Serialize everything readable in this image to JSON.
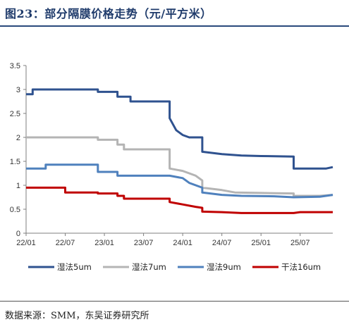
{
  "title": "图23：部分隔膜价格走势（元/平方米）",
  "source": "数据来源：SMM，东吴证券研究所",
  "chart_data": {
    "type": "line",
    "title": "部分隔膜价格走势（元/平方米）",
    "xlabel": "",
    "ylabel": "",
    "ylim": [
      0,
      3.5
    ],
    "yticks": [
      "0",
      "0.5",
      "1",
      "1.5",
      "2",
      "2.5",
      "3",
      "3.5"
    ],
    "xlim": [
      "2022-01",
      "2025-12"
    ],
    "xticks": [
      "22/01",
      "22/07",
      "23/01",
      "23/07",
      "24/01",
      "24/07",
      "25/01",
      "25/07"
    ],
    "grid": false,
    "legend_position": "bottom",
    "series": [
      {
        "name": "湿法5um",
        "color": "#2f528f",
        "points": [
          [
            "2022-01",
            2.9
          ],
          [
            "2022-02",
            2.9
          ],
          [
            "2022-02",
            3.0
          ],
          [
            "2022-12",
            3.0
          ],
          [
            "2022-12",
            2.95
          ],
          [
            "2023-03",
            2.95
          ],
          [
            "2023-03",
            2.85
          ],
          [
            "2023-05",
            2.85
          ],
          [
            "2023-05",
            2.75
          ],
          [
            "2023-11",
            2.75
          ],
          [
            "2023-11",
            2.4
          ],
          [
            "2023-12",
            2.15
          ],
          [
            "2024-01",
            2.05
          ],
          [
            "2024-02",
            2.0
          ],
          [
            "2024-04",
            2.0
          ],
          [
            "2024-04",
            1.7
          ],
          [
            "2024-07",
            1.65
          ],
          [
            "2024-10",
            1.62
          ],
          [
            "2025-01",
            1.61
          ],
          [
            "2025-06",
            1.6
          ],
          [
            "2025-06",
            1.35
          ],
          [
            "2025-11",
            1.35
          ],
          [
            "2025-12",
            1.38
          ]
        ]
      },
      {
        "name": "湿法7um",
        "color": "#b4b4b4",
        "points": [
          [
            "2022-01",
            2.0
          ],
          [
            "2022-12",
            2.0
          ],
          [
            "2022-12",
            1.95
          ],
          [
            "2023-03",
            1.95
          ],
          [
            "2023-03",
            1.85
          ],
          [
            "2023-04",
            1.85
          ],
          [
            "2023-04",
            1.75
          ],
          [
            "2023-11",
            1.75
          ],
          [
            "2023-11",
            1.35
          ],
          [
            "2024-01",
            1.3
          ],
          [
            "2024-02",
            1.25
          ],
          [
            "2024-03",
            1.2
          ],
          [
            "2024-04",
            1.1
          ],
          [
            "2024-04",
            0.95
          ],
          [
            "2024-07",
            0.9
          ],
          [
            "2024-09",
            0.85
          ],
          [
            "2025-01",
            0.84
          ],
          [
            "2025-06",
            0.83
          ],
          [
            "2025-06",
            0.78
          ],
          [
            "2025-10",
            0.78
          ],
          [
            "2025-12",
            0.8
          ]
        ]
      },
      {
        "name": "湿法9um",
        "color": "#4f81bd",
        "points": [
          [
            "2022-01",
            1.35
          ],
          [
            "2022-04",
            1.35
          ],
          [
            "2022-04",
            1.43
          ],
          [
            "2022-12",
            1.43
          ],
          [
            "2022-12",
            1.28
          ],
          [
            "2023-03",
            1.28
          ],
          [
            "2023-03",
            1.2
          ],
          [
            "2023-11",
            1.2
          ],
          [
            "2024-01",
            1.15
          ],
          [
            "2024-02",
            1.05
          ],
          [
            "2024-04",
            0.95
          ],
          [
            "2024-04",
            0.85
          ],
          [
            "2024-07",
            0.8
          ],
          [
            "2024-10",
            0.78
          ],
          [
            "2025-03",
            0.77
          ],
          [
            "2025-06",
            0.75
          ],
          [
            "2025-10",
            0.76
          ],
          [
            "2025-12",
            0.8
          ]
        ]
      },
      {
        "name": "干法16um",
        "color": "#c00000",
        "points": [
          [
            "2022-01",
            0.95
          ],
          [
            "2022-07",
            0.95
          ],
          [
            "2022-07",
            0.85
          ],
          [
            "2022-12",
            0.85
          ],
          [
            "2022-12",
            0.83
          ],
          [
            "2023-03",
            0.83
          ],
          [
            "2023-03",
            0.78
          ],
          [
            "2023-04",
            0.78
          ],
          [
            "2023-04",
            0.72
          ],
          [
            "2023-11",
            0.72
          ],
          [
            "2023-11",
            0.65
          ],
          [
            "2024-01",
            0.6
          ],
          [
            "2024-03",
            0.55
          ],
          [
            "2024-04",
            0.53
          ],
          [
            "2024-04",
            0.45
          ],
          [
            "2024-07",
            0.44
          ],
          [
            "2024-10",
            0.42
          ],
          [
            "2025-06",
            0.42
          ],
          [
            "2025-07",
            0.44
          ],
          [
            "2025-12",
            0.44
          ]
        ]
      }
    ]
  }
}
